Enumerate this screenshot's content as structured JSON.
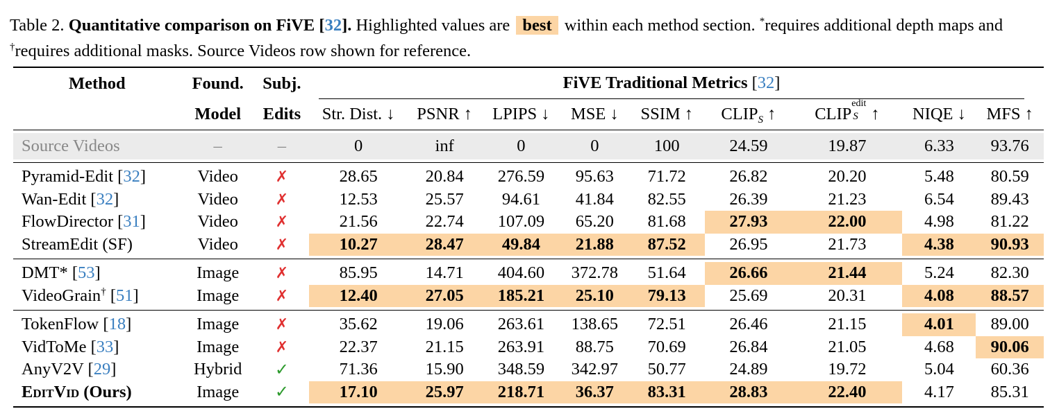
{
  "caption": {
    "table_label": "Table 2.",
    "title_prefix": "Quantitative comparison on FiVE [",
    "title_cite": "32",
    "title_suffix": "].",
    "text1": "Highlighted values are",
    "best_label": "best",
    "text2": "within each method section.",
    "star_mark": "*",
    "text3": "requires additional depth maps and",
    "dagger_mark": "†",
    "text4": "requires additional masks. Source Videos row shown for reference."
  },
  "header": {
    "method": "Method",
    "found_top": "Found.",
    "found_bottom": "Model",
    "subj_top": "Subj.",
    "subj_bottom": "Edits",
    "group_title": "FiVE Traditional Metrics",
    "group_cite": "32",
    "metrics": [
      "Str. Dist. ↓",
      "PSNR ↑",
      "LPIPS ↓",
      "MSE ↓",
      "SSIM ↑",
      "CLIP",
      "CLIP",
      "NIQE ↓",
      "MFS ↑"
    ],
    "clip_s_sub": "S",
    "clip_edit_sup": "edit",
    "clip_arrow": "↑"
  },
  "source_row": {
    "method": "Source Videos",
    "found": "–",
    "subj": "–",
    "values": [
      "0",
      "inf",
      "0",
      "0",
      "100",
      "24.59",
      "19.87",
      "6.33",
      "93.76"
    ]
  },
  "groups": [
    [
      {
        "method": "Pyramid-Edit",
        "cite": "32",
        "found": "Video",
        "subj": "cross",
        "values": [
          "28.65",
          "20.84",
          "276.59",
          "95.63",
          "71.72",
          "26.82",
          "20.20",
          "5.48",
          "80.59"
        ],
        "best": []
      },
      {
        "method": "Wan-Edit",
        "cite": "32",
        "found": "Video",
        "subj": "cross",
        "values": [
          "12.53",
          "25.57",
          "94.61",
          "41.84",
          "82.55",
          "26.39",
          "21.23",
          "6.54",
          "89.43"
        ],
        "best": []
      },
      {
        "method": "FlowDirector",
        "cite": "31",
        "found": "Video",
        "subj": "cross",
        "values": [
          "21.56",
          "22.74",
          "107.09",
          "65.20",
          "81.68",
          "27.93",
          "22.00",
          "4.98",
          "81.22"
        ],
        "best": [
          5,
          6
        ]
      },
      {
        "method": "StreamEdit (SF)",
        "cite": "",
        "found": "Video",
        "subj": "cross",
        "values": [
          "10.27",
          "28.47",
          "49.84",
          "21.88",
          "87.52",
          "26.95",
          "21.73",
          "4.38",
          "90.93"
        ],
        "best": [
          0,
          1,
          2,
          3,
          4,
          7,
          8
        ]
      }
    ],
    [
      {
        "method": "DMT*",
        "cite": "53",
        "found": "Image",
        "subj": "cross",
        "values": [
          "85.95",
          "14.71",
          "404.60",
          "372.78",
          "51.64",
          "26.66",
          "21.44",
          "5.24",
          "82.30"
        ],
        "best": [
          5,
          6
        ]
      },
      {
        "method": "VideoGrain",
        "mark": "†",
        "cite": "51",
        "found": "Image",
        "subj": "cross",
        "values": [
          "12.40",
          "27.05",
          "185.21",
          "25.10",
          "79.13",
          "25.69",
          "20.31",
          "4.08",
          "88.57"
        ],
        "best": [
          0,
          1,
          2,
          3,
          4,
          7,
          8
        ]
      }
    ],
    [
      {
        "method": "TokenFlow",
        "cite": "18",
        "found": "Image",
        "subj": "cross",
        "values": [
          "35.62",
          "19.06",
          "263.61",
          "138.65",
          "72.51",
          "26.46",
          "21.15",
          "4.01",
          "89.00"
        ],
        "best": [
          7
        ]
      },
      {
        "method": "VidToMe",
        "cite": "33",
        "found": "Image",
        "subj": "cross",
        "values": [
          "22.37",
          "21.15",
          "263.91",
          "88.75",
          "70.69",
          "26.84",
          "21.05",
          "4.68",
          "90.06"
        ],
        "best": [
          8
        ]
      },
      {
        "method": "AnyV2V",
        "cite": "29",
        "found": "Hybrid",
        "subj": "check",
        "values": [
          "71.36",
          "15.90",
          "348.59",
          "342.97",
          "50.77",
          "24.89",
          "19.72",
          "5.04",
          "60.36"
        ],
        "best": []
      },
      {
        "method": "EditVid (Ours)",
        "ours": true,
        "ours_name": "EditVid",
        "ours_suffix": "(Ours)",
        "cite": "",
        "found": "Image",
        "subj": "check",
        "values": [
          "17.10",
          "25.97",
          "218.71",
          "36.37",
          "83.31",
          "28.83",
          "22.40",
          "4.17",
          "85.31"
        ],
        "best": [
          0,
          1,
          2,
          3,
          4,
          5,
          6
        ]
      }
    ]
  ],
  "glyphs": {
    "cross": "✗",
    "check": "✓"
  },
  "colors": {
    "best_highlight": "#fcd5a5",
    "citation": "#3a7fc0",
    "cross": "#e03030",
    "check": "#2c9a2c",
    "source_row_bg": "#ebebeb"
  }
}
